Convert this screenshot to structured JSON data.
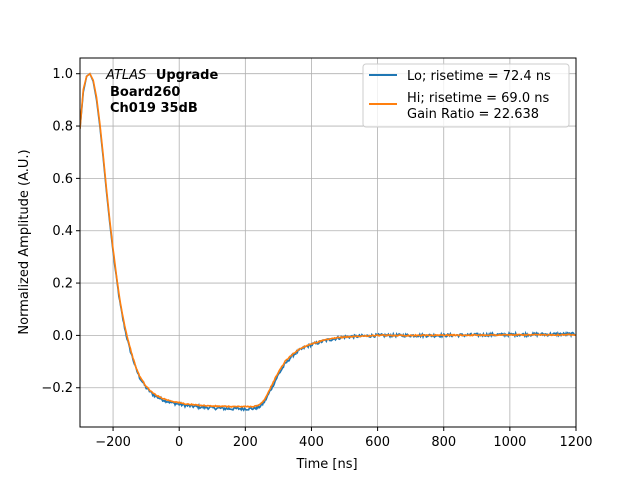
{
  "chart_data": {
    "type": "line",
    "xlabel": "Time [ns]",
    "ylabel": "Normalized Amplitude (A.U.)",
    "xlim": [
      -300,
      1200
    ],
    "ylim": [
      -0.35,
      1.06
    ],
    "xticks": [
      -200,
      0,
      200,
      400,
      600,
      800,
      1000,
      1200
    ],
    "yticks": [
      -0.2,
      0.0,
      0.2,
      0.4,
      0.6,
      0.8,
      1.0
    ],
    "xtick_labels": [
      "−200",
      "0",
      "200",
      "400",
      "600",
      "800",
      "1000",
      "1200"
    ],
    "ytick_labels": [
      "−0.2",
      "0.0",
      "0.2",
      "0.4",
      "0.6",
      "0.8",
      "1.0"
    ],
    "grid": true,
    "legend_position": "top-right",
    "annotation": {
      "italic": "ATLAS",
      "bold": "Upgrade",
      "line2": "Board260",
      "line3": "Ch019 35dB"
    },
    "series": [
      {
        "name": "Lo; risetime = 72.4 ns",
        "color": "#1f77b4",
        "noise": 0.006,
        "x": [
          -300,
          -290,
          -280,
          -270,
          -260,
          -250,
          -240,
          -230,
          -220,
          -210,
          -200,
          -190,
          -180,
          -170,
          -160,
          -150,
          -140,
          -130,
          -120,
          -110,
          -100,
          -80,
          -60,
          -40,
          -20,
          0,
          20,
          50,
          100,
          150,
          200,
          220,
          240,
          250,
          260,
          280,
          300,
          320,
          340,
          360,
          380,
          400,
          420,
          440,
          460,
          480,
          500,
          550,
          600,
          700,
          800,
          900,
          1000,
          1100,
          1200
        ],
        "y": [
          0.79,
          0.93,
          0.99,
          1.0,
          0.97,
          0.9,
          0.8,
          0.68,
          0.55,
          0.43,
          0.32,
          0.22,
          0.13,
          0.06,
          0.0,
          -0.05,
          -0.09,
          -0.13,
          -0.16,
          -0.18,
          -0.2,
          -0.225,
          -0.24,
          -0.25,
          -0.258,
          -0.263,
          -0.268,
          -0.272,
          -0.277,
          -0.28,
          -0.28,
          -0.28,
          -0.275,
          -0.265,
          -0.25,
          -0.2,
          -0.15,
          -0.11,
          -0.08,
          -0.06,
          -0.045,
          -0.035,
          -0.028,
          -0.02,
          -0.015,
          -0.01,
          -0.006,
          -0.003,
          0.0,
          0.0,
          0.0,
          0.002,
          0.003,
          0.004,
          0.005
        ]
      },
      {
        "name": "Hi; risetime = 69.0 ns\n Gain Ratio = 22.638",
        "color": "#ff7f0e",
        "noise": 0.002,
        "x": [
          -300,
          -290,
          -280,
          -270,
          -260,
          -250,
          -240,
          -230,
          -220,
          -210,
          -200,
          -190,
          -180,
          -170,
          -160,
          -150,
          -140,
          -130,
          -120,
          -110,
          -100,
          -80,
          -60,
          -40,
          -20,
          0,
          20,
          50,
          100,
          150,
          200,
          220,
          240,
          250,
          260,
          280,
          300,
          320,
          340,
          360,
          380,
          400,
          420,
          440,
          460,
          480,
          500,
          550,
          600,
          700,
          800,
          900,
          1000,
          1100,
          1200
        ],
        "y": [
          0.79,
          0.94,
          0.99,
          1.0,
          0.975,
          0.91,
          0.81,
          0.69,
          0.56,
          0.44,
          0.33,
          0.23,
          0.14,
          0.07,
          0.01,
          -0.04,
          -0.085,
          -0.125,
          -0.155,
          -0.175,
          -0.195,
          -0.22,
          -0.235,
          -0.245,
          -0.252,
          -0.257,
          -0.262,
          -0.266,
          -0.27,
          -0.272,
          -0.272,
          -0.272,
          -0.268,
          -0.258,
          -0.242,
          -0.19,
          -0.14,
          -0.1,
          -0.075,
          -0.055,
          -0.042,
          -0.032,
          -0.025,
          -0.018,
          -0.013,
          -0.009,
          -0.006,
          -0.003,
          0.0,
          0.0,
          0.001,
          0.001,
          0.002,
          0.002,
          0.003
        ]
      }
    ]
  }
}
